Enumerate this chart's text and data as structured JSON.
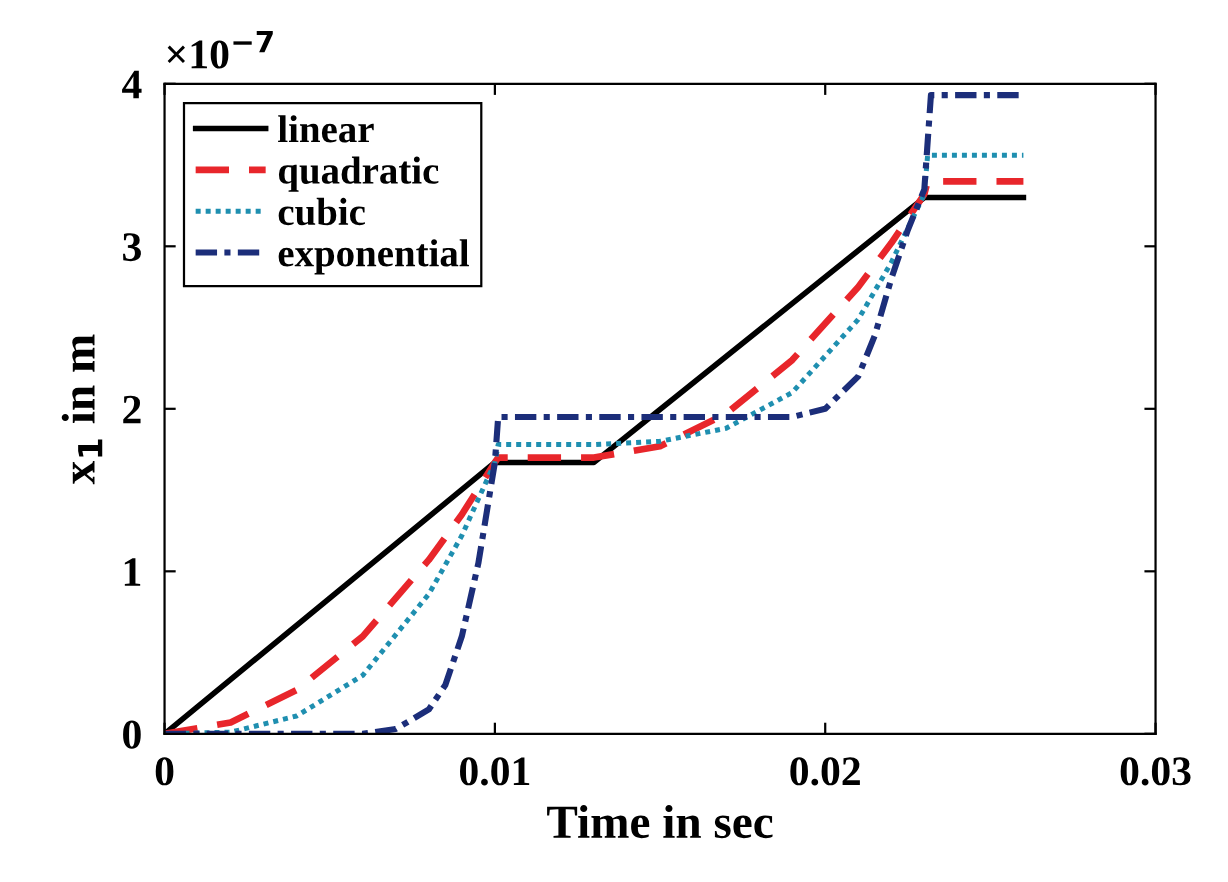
{
  "chart_data": {
    "type": "line",
    "xlabel": "Time in sec",
    "ylabel": "x$_{1}$ in m",
    "annotations": [
      "×10$^{−7}$"
    ],
    "xlim": [
      0,
      0.03
    ],
    "xticks": [
      0,
      0.01,
      0.02,
      0.03
    ],
    "ylim": [
      0,
      4
    ],
    "yticks": [
      0,
      1,
      2,
      3,
      4
    ],
    "grid": false,
    "legend": "top left",
    "series": [
      {
        "name": "linear",
        "color": "#000000",
        "line_style": "solid",
        "x": [
          0,
          0.01,
          0.013,
          0.023,
          0.026
        ],
        "values": [
          0,
          1.67,
          1.67,
          3.3,
          3.3
        ]
      },
      {
        "name": "quadratic",
        "color": "#e8262b",
        "line_style": "dashed",
        "x": [
          0,
          0.002,
          0.004,
          0.006,
          0.008,
          0.009,
          0.01,
          0.0101,
          0.013,
          0.015,
          0.017,
          0.019,
          0.021,
          0.022,
          0.023,
          0.0231,
          0.026
        ],
        "values": [
          0,
          0.07,
          0.27,
          0.6,
          1.07,
          1.35,
          1.67,
          1.7,
          1.7,
          1.77,
          1.97,
          2.3,
          2.75,
          3.02,
          3.32,
          3.4,
          3.4
        ]
      },
      {
        "name": "cubic",
        "color": "#1f8fb0",
        "line_style": "dotted",
        "x": [
          0,
          0.002,
          0.004,
          0.006,
          0.008,
          0.009,
          0.01,
          0.0101,
          0.013,
          0.015,
          0.017,
          0.019,
          0.021,
          0.022,
          0.023,
          0.0231,
          0.026
        ],
        "values": [
          0,
          0.01,
          0.11,
          0.36,
          0.86,
          1.22,
          1.67,
          1.78,
          1.78,
          1.8,
          1.88,
          2.1,
          2.55,
          2.9,
          3.32,
          3.56,
          3.56
        ]
      },
      {
        "name": "exponential",
        "color": "#1c2e7a",
        "line_style": "dashdot",
        "x": [
          0,
          0.006,
          0.007,
          0.008,
          0.0085,
          0.009,
          0.0095,
          0.01,
          0.0101,
          0.019,
          0.02,
          0.021,
          0.0215,
          0.022,
          0.0225,
          0.023,
          0.0232,
          0.026
        ],
        "values": [
          0,
          0,
          0.03,
          0.15,
          0.3,
          0.6,
          1.05,
          1.67,
          1.95,
          1.95,
          2.0,
          2.2,
          2.45,
          2.8,
          3.1,
          3.35,
          3.93,
          3.93
        ]
      }
    ]
  }
}
